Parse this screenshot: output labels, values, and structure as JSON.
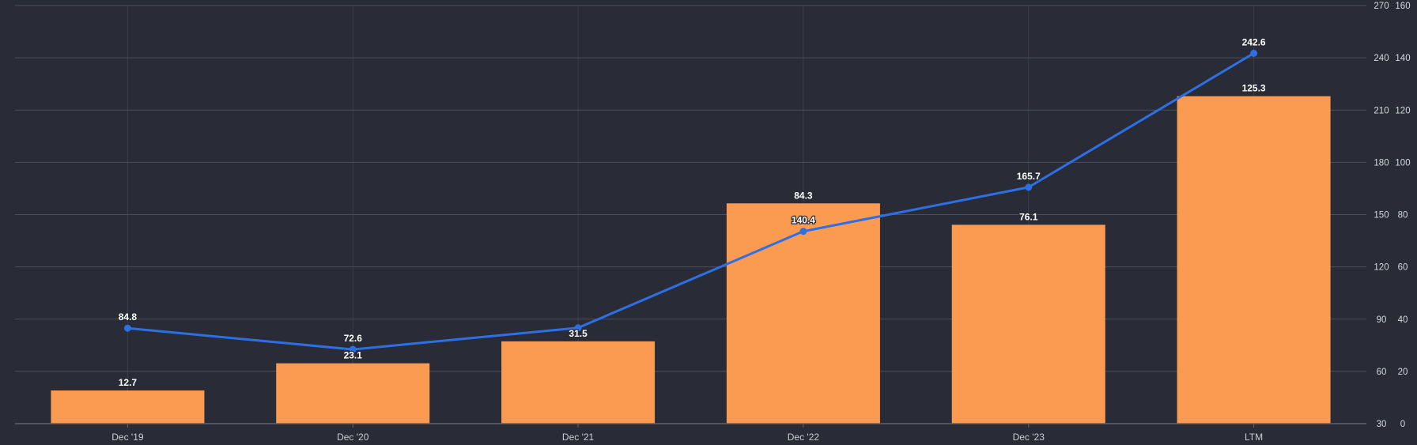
{
  "chart": {
    "title": "",
    "colors": {
      "background": "#292C36",
      "bar": "#FA9B51",
      "line": "#2D6FE4",
      "marker": "#2D6FE4",
      "data_label": "#FFFFFF",
      "axis_tick_label": "#D4D8DF",
      "x_tick_label": "#C9CDD3",
      "gridline": "#4B4F5A",
      "vertical_gridline": "#3B3E49",
      "baseline": "#5E626E",
      "x_tick_mark": "#5E626E"
    }
  },
  "chart_data": {
    "type": "combo-bar-line",
    "title": "",
    "categories": [
      "Dec '19",
      "Dec '20",
      "Dec '21",
      "Dec '22",
      "Dec '23",
      "LTM"
    ],
    "series": [
      {
        "name": "bar-series",
        "type": "bar",
        "axis": "bar_axis",
        "values": [
          12.7,
          23.1,
          31.5,
          84.3,
          76.1,
          125.3
        ],
        "data_labels": [
          "12.7",
          "23.1",
          "31.5",
          "84.3",
          "76.1",
          "125.3"
        ]
      },
      {
        "name": "line-series",
        "type": "line",
        "axis": "line_axis",
        "values": [
          84.8,
          72.6,
          85.0,
          140.4,
          165.7,
          242.6
        ],
        "data_labels": [
          "84.8",
          "72.6",
          null,
          "140.4",
          "165.7",
          "242.6"
        ],
        "note": "third point label is not displayed in the chart (collides with bar label 31.5); its value is estimated from the plotted position"
      }
    ],
    "axes": {
      "line_axis": {
        "position": "right-inner-column",
        "min": 30,
        "max": 270,
        "tick_step": 30,
        "tick_labels": [
          "270",
          "240",
          "210",
          "180",
          "150",
          "120",
          "90",
          "60",
          "30"
        ]
      },
      "bar_axis": {
        "position": "right-outer-column",
        "min": 0,
        "max": 160,
        "tick_step": 20,
        "tick_labels": [
          "160",
          "140",
          "120",
          "100",
          "80",
          "60",
          "40",
          "20",
          "0"
        ]
      },
      "x_axis": {
        "position": "bottom",
        "tick_labels": [
          "Dec '19",
          "Dec '20",
          "Dec '21",
          "Dec '22",
          "Dec '23",
          "LTM"
        ]
      }
    },
    "grid": {
      "horizontal": true,
      "vertical": true
    },
    "legend": {
      "shown": false
    }
  }
}
